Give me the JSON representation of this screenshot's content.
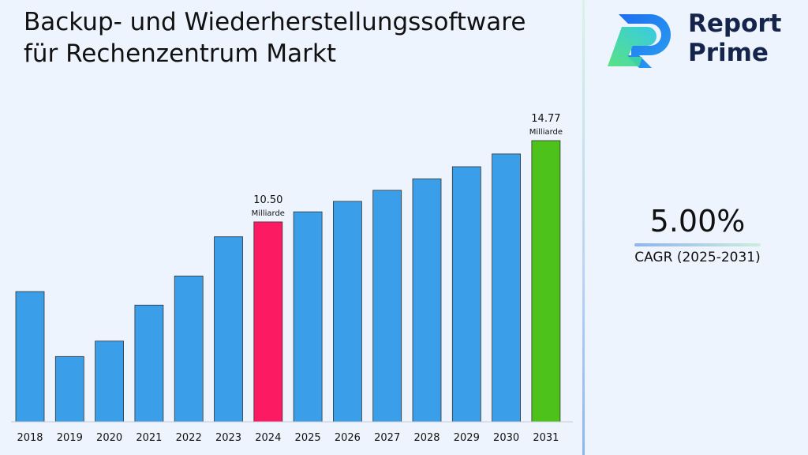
{
  "title_lines": [
    "Backup- und Wiederherstellungssoftware",
    "für Rechenzentrum Markt"
  ],
  "brand": {
    "line1": "Report",
    "line2": "Prime"
  },
  "cagr": {
    "value": "5.00%",
    "label": "CAGR (2025-2031)"
  },
  "colors": {
    "bar_default": "#3a9fe8",
    "bar_highlight_2024": "#fc1a63",
    "bar_highlight_2031": "#4cc21a",
    "brand_dark": "#15244a"
  },
  "chart_data": {
    "type": "bar",
    "categories": [
      "2018",
      "2019",
      "2020",
      "2021",
      "2022",
      "2023",
      "2024",
      "2025",
      "2026",
      "2027",
      "2028",
      "2029",
      "2030",
      "2031"
    ],
    "values": [
      6.84,
      3.43,
      4.24,
      6.13,
      7.66,
      9.72,
      10.5,
      11.03,
      11.58,
      12.16,
      12.76,
      13.4,
      14.07,
      14.77
    ],
    "highlight": {
      "2024": "bar_highlight_2024",
      "2031": "bar_highlight_2031"
    },
    "annotations": [
      {
        "category": "2024",
        "value_label": "10.50",
        "unit_label": "Milliarde"
      },
      {
        "category": "2031",
        "value_label": "14.77",
        "unit_label": "Milliarde"
      }
    ],
    "ylim": [
      0,
      14.77
    ],
    "xlabel": "",
    "ylabel": "",
    "grid": false,
    "legend": "none"
  }
}
